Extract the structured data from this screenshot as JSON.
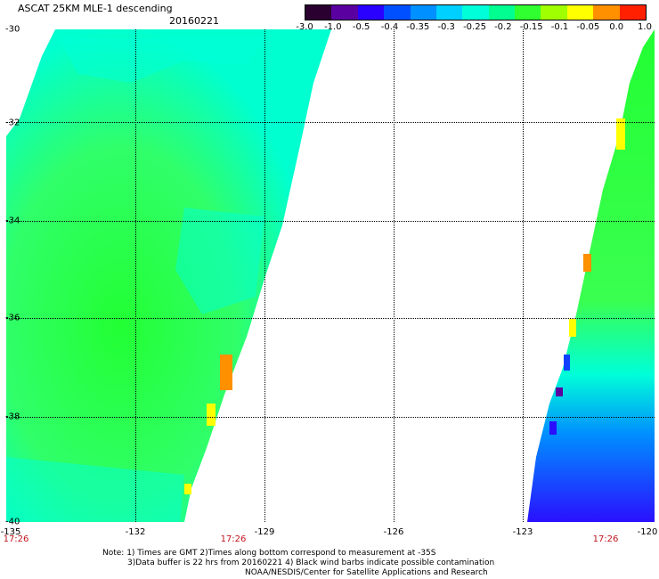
{
  "header": {
    "title": "ASCAT 25KM MLE-1 descending",
    "date": "20160221"
  },
  "colorbar": {
    "labels": [
      "-3.0",
      "-1.0",
      "-0.5",
      "-0.4",
      "-0.35",
      "-0.3",
      "-0.25",
      "-0.2",
      "-0.15",
      "-0.1",
      "-0.05",
      "0.0",
      "1.0"
    ],
    "colors": [
      "#2a0030",
      "#5a00a0",
      "#2a00ff",
      "#0050ff",
      "#0090ff",
      "#00d0ff",
      "#00ffd8",
      "#00ff90",
      "#30ff30",
      "#a0ff00",
      "#ffff00",
      "#ff9000",
      "#ff2000"
    ]
  },
  "map": {
    "lat_labels": [
      "-30",
      "-32",
      "-34",
      "-36",
      "-38",
      "-40"
    ],
    "lon_labels": [
      "-135",
      "-132",
      "-129",
      "-126",
      "-123",
      "-120"
    ],
    "time_labels": [
      "17:26",
      "17:26",
      "17:26"
    ],
    "colors": {
      "green": "#22ff33",
      "cyan": "#00ffe0",
      "lightgreen": "#7dff3c",
      "blue": "#1040ff",
      "darkblue": "#2a10ff",
      "yellow": "#ffff00",
      "orange": "#ff9000",
      "purple": "#5a00a0"
    }
  },
  "notes": {
    "line1": "Note: 1) Times are GMT 2)Times along bottom correspond to measurement at -35S",
    "line2": "3)Data buffer is 22 hrs from 20160221 4) Black wind barbs indicate possible contamination",
    "line3": "NOAA/NESDIS/Center for Satellite Applications and Research"
  }
}
